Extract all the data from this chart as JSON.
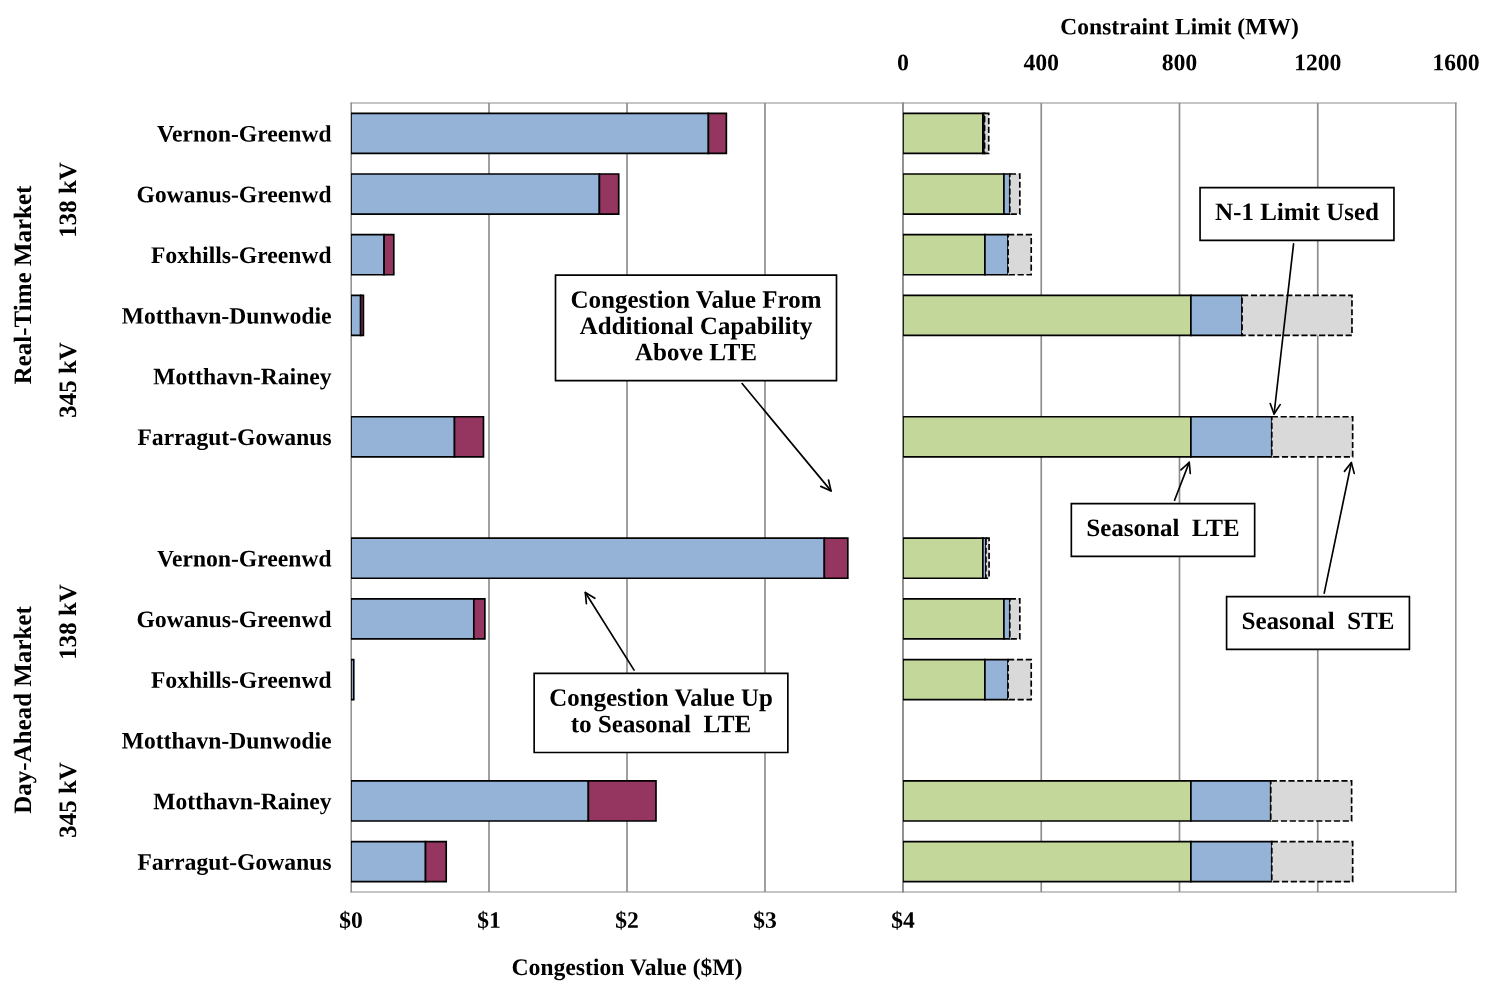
{
  "chart_data": [
    {
      "type": "bar",
      "orientation": "horizontal",
      "stacked": true,
      "xlabel": "Congestion Value ($M)",
      "categories": [
        "Vernon-Greenwd",
        "Gowanus-Greenwd",
        "Foxhills-Greenwd",
        "Motthavn-Dunwodie",
        "Motthavn-Rainey",
        "Farragut-Gowanus",
        null,
        "Vernon-Greenwd",
        "Gowanus-Greenwd",
        "Foxhills-Greenwd",
        "Motthavn-Dunwodie",
        "Motthavn-Rainey",
        "Farragut-Gowanus"
      ],
      "series": [
        {
          "color": "#95b3d7",
          "values": [
            2.59,
            1.8,
            0.24,
            0.07,
            null,
            0.75,
            null,
            3.43,
            0.89,
            0.02,
            null,
            1.72,
            0.54
          ]
        },
        {
          "color": "#953660",
          "values": [
            0.13,
            0.14,
            0.07,
            0.02,
            null,
            0.21,
            null,
            0.17,
            0.08,
            null,
            null,
            0.49,
            0.15
          ]
        }
      ],
      "xlim": [
        0,
        4
      ],
      "xticks": [
        {
          "value": 0,
          "label": "$0"
        },
        {
          "value": 1,
          "label": "$1"
        },
        {
          "value": 2,
          "label": "$2"
        },
        {
          "value": 3,
          "label": "$3"
        },
        {
          "value": 4,
          "label": "$4"
        }
      ],
      "grid": "x",
      "legend": false,
      "annotations": [
        "Real-Time Market",
        "138 kV",
        "345 kV",
        "Day-Ahead Market",
        "138 kV",
        "345 kV",
        "Congestion Value From\nAdditional Capability\nAbove LTE",
        "Congestion Value Up\nto Seasonal  LTE"
      ]
    },
    {
      "type": "bar",
      "orientation": "horizontal",
      "stacked": true,
      "xlabel": "Constraint Limit (MW)",
      "series": [
        {
          "color": "#c4d79b",
          "values": [
            231,
            292,
            237,
            833,
            null,
            833,
            null,
            231,
            292,
            237,
            null,
            833,
            833
          ]
        },
        {
          "color": "#95b3d7",
          "values": [
            5,
            17,
            67,
            148,
            null,
            234,
            null,
            9,
            17,
            67,
            null,
            231,
            234
          ]
        },
        {
          "color": "#d9d9d9",
          "line_style": "dashed",
          "values": [
            12,
            29,
            67,
            318,
            null,
            234,
            null,
            9,
            29,
            67,
            null,
            234,
            234
          ]
        }
      ],
      "xlim": [
        0,
        1600
      ],
      "xticks": [
        0,
        400,
        800,
        1200,
        1600
      ],
      "grid": "x",
      "legend": false,
      "tick_labels": "x",
      "annotations": [
        "N-1 Limit Used",
        "Seasonal  LTE",
        "Seasonal  STE"
      ]
    }
  ]
}
